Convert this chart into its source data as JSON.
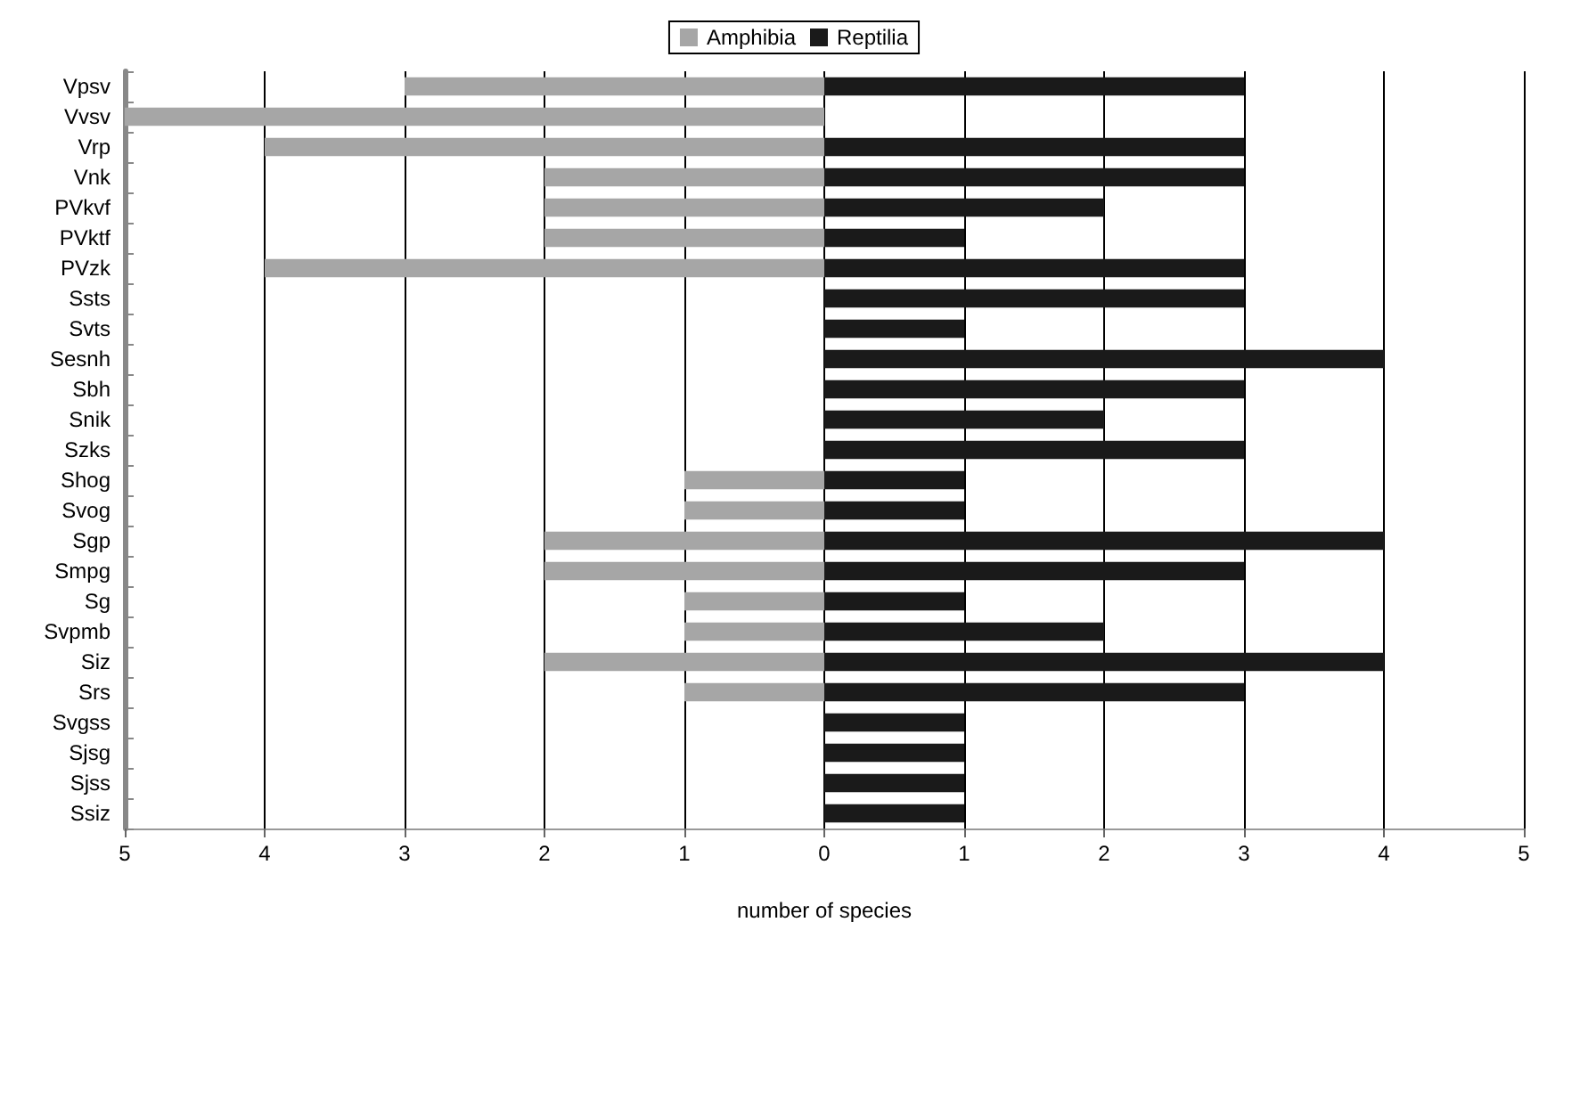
{
  "chart_data": {
    "type": "bar",
    "orientation": "horizontal",
    "xlabel": "number of species",
    "categories": [
      "Vpsv",
      "Vvsv",
      "Vrp",
      "Vnk",
      "PVkvf",
      "PVktf",
      "PVzk",
      "Ssts",
      "Svts",
      "Sesnh",
      "Sbh",
      "Snik",
      "Szks",
      "Shog",
      "Svog",
      "Sgp",
      "Smpg",
      "Sg",
      "Svpmb",
      "Siz",
      "Srs",
      "Svgss",
      "Sjsg",
      "Sjss",
      "Ssiz"
    ],
    "series": [
      {
        "name": "Amphibia",
        "color": "#a6a6a6",
        "values": [
          -3,
          -5,
          -4,
          -2,
          -2,
          -2,
          -4,
          null,
          null,
          null,
          null,
          null,
          null,
          -1,
          -1,
          -2,
          -2,
          -1,
          -1,
          -2,
          -1,
          null,
          null,
          null,
          null
        ]
      },
      {
        "name": "Reptilia",
        "color": "#1a1a1a",
        "values": [
          3,
          null,
          3,
          3,
          2,
          1,
          3,
          3,
          1,
          4,
          3,
          2,
          3,
          1,
          1,
          4,
          3,
          1,
          2,
          4,
          3,
          1,
          1,
          1,
          1
        ]
      }
    ],
    "stacked": true,
    "xlim": [
      -5,
      5
    ],
    "xticks": [
      {
        "value": -5,
        "label": "5"
      },
      {
        "value": -4,
        "label": "4"
      },
      {
        "value": -3,
        "label": "3"
      },
      {
        "value": -2,
        "label": "2"
      },
      {
        "value": -1,
        "label": "1"
      },
      0,
      1,
      2,
      3,
      4,
      5
    ],
    "grid": "x",
    "legend": "top"
  }
}
